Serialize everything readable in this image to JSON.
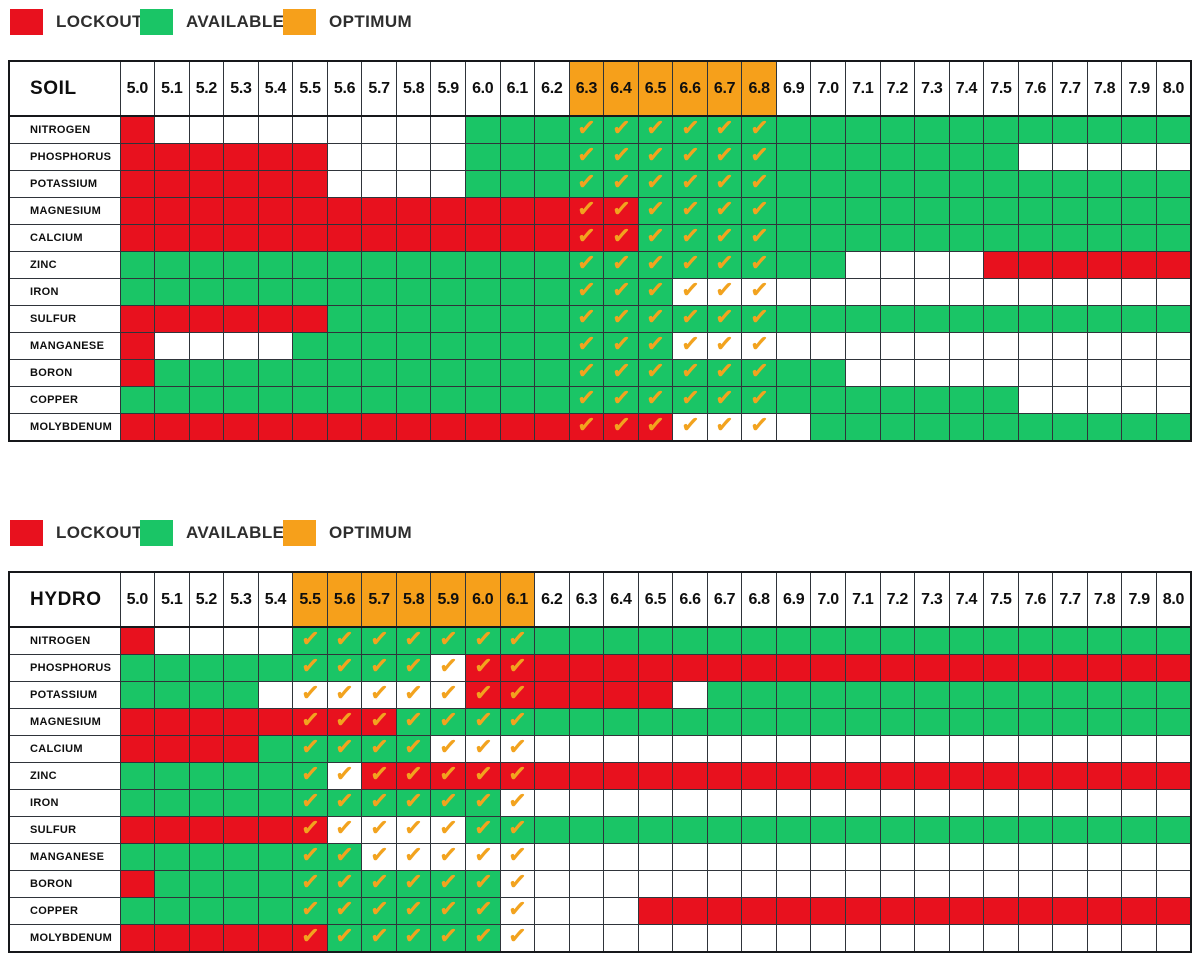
{
  "legend": {
    "items": [
      {
        "key": "lockout",
        "label": "LOCKOUT",
        "color": "#e8111e"
      },
      {
        "key": "available",
        "label": "AVAILABLE",
        "color": "#1ac566"
      },
      {
        "key": "optimum",
        "label": "OPTIMUM",
        "color": "#f6a01b"
      }
    ]
  },
  "icons": {
    "check_glyph": "✓"
  },
  "colors": {
    "lockout": "#e8111e",
    "available": "#1ac566",
    "optimum": "#f6a01b",
    "check": "#f2a31f",
    "grid_line": "#2f343a",
    "text": "#0e0e0e"
  },
  "cell_encoding": "run-length tokens '<char><count>': r=lockout(red), g=available(green), w=none(white); UPPERCASE letter means the cell also carries an orange optimum checkmark",
  "chart_data": [
    {
      "type": "heatmap",
      "title": "SOIL",
      "x_label": "pH",
      "x_labels": [
        "5.0",
        "5.1",
        "5.2",
        "5.3",
        "5.4",
        "5.5",
        "5.6",
        "5.7",
        "5.8",
        "5.9",
        "6.0",
        "6.1",
        "6.2",
        "6.3",
        "6.4",
        "6.5",
        "6.6",
        "6.7",
        "6.8",
        "6.9",
        "7.0",
        "7.1",
        "7.2",
        "7.3",
        "7.4",
        "7.5",
        "7.6",
        "7.7",
        "7.8",
        "7.9",
        "8.0"
      ],
      "optimum_ph_range": [
        "6.3",
        "6.8"
      ],
      "rows": [
        {
          "label": "NITROGEN",
          "cells_rle": "r1 w9 g3 G6 g12"
        },
        {
          "label": "PHOSPHORUS",
          "cells_rle": "r6 w4 g3 G6 g7 w5"
        },
        {
          "label": "POTASSIUM",
          "cells_rle": "r6 w4 g3 G6 g12"
        },
        {
          "label": "MAGNESIUM",
          "cells_rle": "r13 R2 G4 g12"
        },
        {
          "label": "CALCIUM",
          "cells_rle": "r13 R2 G4 g12"
        },
        {
          "label": "ZINC",
          "cells_rle": "g13 G6 g2 w4 r6"
        },
        {
          "label": "IRON",
          "cells_rle": "g13 G3 W3 w12"
        },
        {
          "label": "SULFUR",
          "cells_rle": "r6 g7 G6 g12"
        },
        {
          "label": "MANGANESE",
          "cells_rle": "r1 w4 g8 G3 W3 w12"
        },
        {
          "label": "BORON",
          "cells_rle": "r1 g12 G6 g2 w10"
        },
        {
          "label": "COPPER",
          "cells_rle": "g13 G6 g7 w5"
        },
        {
          "label": "MOLYBDENUM",
          "cells_rle": "r13 R3 W3 w1 g11"
        }
      ]
    },
    {
      "type": "heatmap",
      "title": "HYDRO",
      "x_label": "pH",
      "x_labels": [
        "5.0",
        "5.1",
        "5.2",
        "5.3",
        "5.4",
        "5.5",
        "5.6",
        "5.7",
        "5.8",
        "5.9",
        "6.0",
        "6.1",
        "6.2",
        "6.3",
        "6.4",
        "6.5",
        "6.6",
        "6.7",
        "6.8",
        "6.9",
        "7.0",
        "7.1",
        "7.2",
        "7.3",
        "7.4",
        "7.5",
        "7.6",
        "7.7",
        "7.8",
        "7.9",
        "8.0"
      ],
      "optimum_ph_range": [
        "5.5",
        "6.1"
      ],
      "rows": [
        {
          "label": "NITROGEN",
          "cells_rle": "r1 w4 G7 g19"
        },
        {
          "label": "PHOSPHORUS",
          "cells_rle": "g5 G4 W1 R2 r19"
        },
        {
          "label": "POTASSIUM",
          "cells_rle": "g4 w1 W5 R2 r4 w1 g14"
        },
        {
          "label": "MAGNESIUM",
          "cells_rle": "r5 R3 G4 g19"
        },
        {
          "label": "CALCIUM",
          "cells_rle": "r4 g1 G4 W3 w19"
        },
        {
          "label": "ZINC",
          "cells_rle": "g5 G1 W1 R5 r19"
        },
        {
          "label": "IRON",
          "cells_rle": "g5 G6 W1 w19"
        },
        {
          "label": "SULFUR",
          "cells_rle": "r5 R1 W4 G2 g19"
        },
        {
          "label": "MANGANESE",
          "cells_rle": "g5 G2 W5 w19"
        },
        {
          "label": "BORON",
          "cells_rle": "r1 g4 G6 W1 w19"
        },
        {
          "label": "COPPER",
          "cells_rle": "g5 G6 W1 w3 r16"
        },
        {
          "label": "MOLYBDENUM",
          "cells_rle": "r5 R1 G5 W1 w19"
        }
      ]
    }
  ]
}
